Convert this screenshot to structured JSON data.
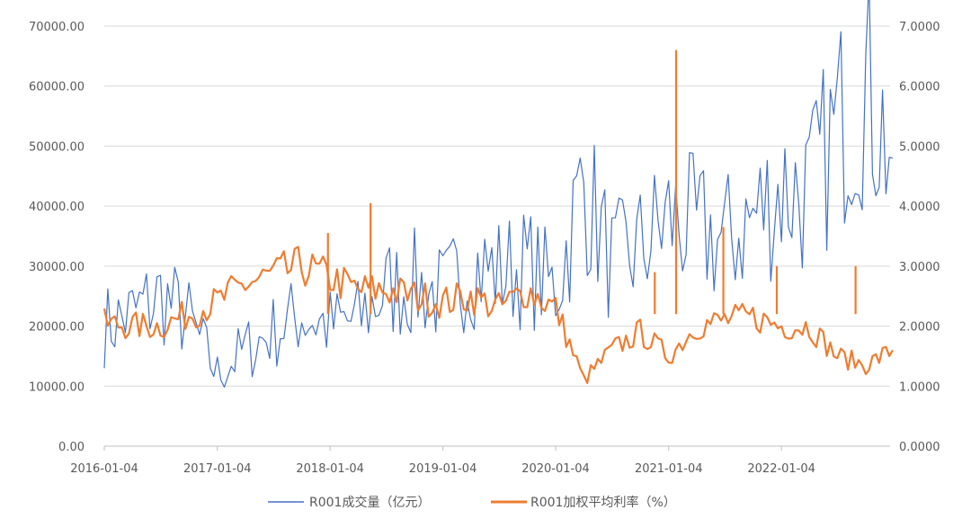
{
  "chart_data": {
    "type": "line",
    "x_ticks": [
      "2016-01-04",
      "2017-01-04",
      "2018-01-04",
      "2019-01-04",
      "2020-01-04",
      "2021-01-04",
      "2022-01-04"
    ],
    "y_left": {
      "ticks": [
        "70000.00",
        "60000.00",
        "50000.00",
        "40000.00",
        "30000.00",
        "20000.00",
        "10000.00",
        "0.00"
      ],
      "ylim": [
        0,
        70000
      ]
    },
    "y_right": {
      "ticks": [
        "7.0000",
        "6.0000",
        "5.0000",
        "4.0000",
        "3.0000",
        "2.0000",
        "1.0000",
        "0.0000"
      ],
      "ylim": [
        0,
        7
      ]
    },
    "grid": "horizontal",
    "legend_position": "bottom",
    "series": [
      {
        "name": "R001成交量（亿元）",
        "axis": "left",
        "color": "#4472C4",
        "x": [
          "2016-01-04",
          "2016-04-04",
          "2016-07-04",
          "2016-10-04",
          "2017-01-04",
          "2017-04-04",
          "2017-07-04",
          "2017-10-04",
          "2018-01-04",
          "2018-04-04",
          "2018-07-04",
          "2018-10-04",
          "2019-01-04",
          "2019-04-04",
          "2019-07-04",
          "2019-10-04",
          "2020-01-04",
          "2020-04-04",
          "2020-07-04",
          "2020-10-04",
          "2021-01-04",
          "2021-04-04",
          "2021-07-04",
          "2021-10-04",
          "2022-01-04",
          "2022-04-04",
          "2022-07-04",
          "2022-10-04",
          "2022-12-30"
        ],
        "values": [
          20000,
          22000,
          25000,
          21000,
          12000,
          16000,
          19000,
          22000,
          20000,
          21000,
          26000,
          27000,
          25000,
          30000,
          29000,
          30000,
          26000,
          44000,
          30000,
          33000,
          38000,
          36000,
          34000,
          38000,
          43000,
          42000,
          53000,
          61000,
          48000
        ]
      },
      {
        "name": "R001加权平均利率（%）",
        "axis": "right",
        "color": "#ED7D31",
        "x": [
          "2016-01-04",
          "2016-04-04",
          "2016-07-04",
          "2016-10-04",
          "2017-01-04",
          "2017-04-04",
          "2017-07-04",
          "2017-10-04",
          "2018-01-04",
          "2018-04-04",
          "2018-07-04",
          "2018-10-04",
          "2019-01-04",
          "2019-04-04",
          "2019-07-04",
          "2019-10-04",
          "2020-01-04",
          "2020-04-04",
          "2020-07-04",
          "2020-10-04",
          "2021-01-04",
          "2021-04-04",
          "2021-07-04",
          "2021-10-04",
          "2022-01-04",
          "2022-04-04",
          "2022-07-04",
          "2022-10-04",
          "2022-12-30"
        ],
        "values": [
          2.05,
          2.0,
          2.0,
          2.2,
          2.4,
          2.7,
          2.85,
          3.0,
          2.8,
          2.6,
          2.6,
          2.5,
          2.4,
          2.5,
          2.3,
          2.6,
          2.3,
          1.1,
          1.6,
          1.9,
          1.5,
          2.0,
          2.1,
          2.15,
          2.0,
          2.0,
          1.5,
          1.35,
          1.6
        ]
      }
    ],
    "spikes": [
      {
        "series": 1,
        "x": "2018-05-15",
        "y": 4.05
      },
      {
        "series": 1,
        "x": "2017-12-28",
        "y": 3.55
      },
      {
        "series": 1,
        "x": "2021-01-28",
        "y": 6.6
      },
      {
        "series": 1,
        "x": "2020-11-20",
        "y": 2.9
      },
      {
        "series": 1,
        "x": "2022-09-01",
        "y": 3.0
      },
      {
        "series": 1,
        "x": "2021-12-20",
        "y": 3.0
      },
      {
        "series": 1,
        "x": "2021-06-30",
        "y": 3.65
      }
    ]
  }
}
